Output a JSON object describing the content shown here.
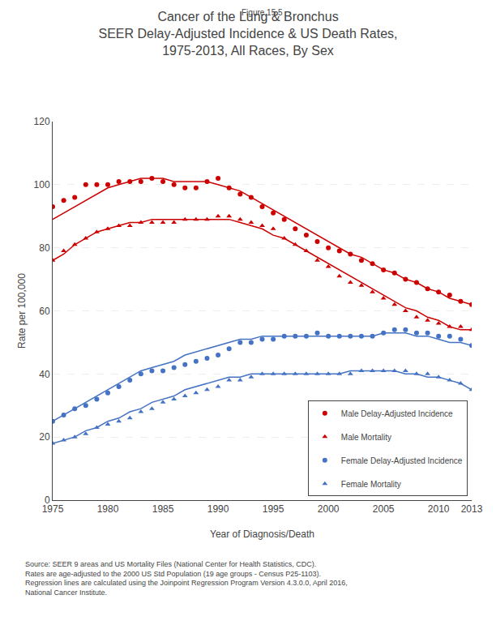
{
  "chart_data": {
    "type": "scatter",
    "title": "Cancer of the Lung & Bronchus\nSEER Delay-Adjusted Incidence & US Death Rates,\n1975-2013, All Races, By Sex",
    "annotations": [
      "Figure 15.5",
      "Source: SEER 9 areas and US Mortality Files (National Center for Health Statistics, CDC).\nRates are age-adjusted to the 2000 US Std Population (19 age groups - Census P25-1103).\nRegression lines are calculated using the Joinpoint Regression Program Version 4.3.0.0, April 2016,\nNational Cancer Institute."
    ],
    "xlabel": "Year of Diagnosis/Death",
    "ylabel": "Rate per 100,000",
    "x": [
      1975,
      1976,
      1977,
      1978,
      1979,
      1980,
      1981,
      1982,
      1983,
      1984,
      1985,
      1986,
      1987,
      1988,
      1989,
      1990,
      1991,
      1992,
      1993,
      1994,
      1995,
      1996,
      1997,
      1998,
      1999,
      2000,
      2001,
      2002,
      2003,
      2004,
      2005,
      2006,
      2007,
      2008,
      2009,
      2010,
      2011,
      2012,
      2013
    ],
    "series": [
      {
        "name": "Male Delay-Adjusted Incidence",
        "color": "#CC0000",
        "marker": "circle",
        "line_style": "solid",
        "values": [
          93,
          95,
          96,
          100,
          100,
          100,
          101,
          101,
          101,
          102,
          101,
          100,
          99,
          99,
          101,
          102,
          99,
          97,
          96,
          93,
          91,
          89,
          86,
          84,
          82,
          80,
          79,
          78,
          76,
          75,
          73,
          72,
          70,
          69,
          67,
          66,
          65,
          63,
          62
        ],
        "regression": [
          89,
          91,
          93,
          95,
          97,
          99,
          100,
          101,
          102,
          102,
          102,
          101,
          101,
          101,
          101,
          100,
          99,
          98,
          96,
          94,
          92,
          90,
          88,
          86,
          84,
          82,
          80,
          78,
          77,
          75,
          73,
          72,
          70,
          69,
          67,
          66,
          64,
          63,
          62
        ]
      },
      {
        "name": "Male Mortality",
        "color": "#CC0000",
        "marker": "triangle",
        "line_style": "solid",
        "values": [
          76,
          79,
          81,
          83,
          85,
          86,
          87,
          87,
          88,
          88,
          88,
          88,
          89,
          89,
          89,
          90,
          90,
          89,
          88,
          87,
          86,
          83,
          81,
          79,
          76,
          74,
          71,
          69,
          68,
          66,
          64,
          62,
          60,
          58,
          57,
          56,
          55,
          55,
          54
        ],
        "regression": [
          76,
          78,
          81,
          83,
          85,
          86,
          87,
          88,
          88,
          89,
          89,
          89,
          89,
          89,
          89,
          89,
          89,
          88,
          87,
          86,
          84,
          83,
          81,
          79,
          77,
          75,
          73,
          71,
          69,
          67,
          65,
          63,
          61,
          60,
          58,
          57,
          55,
          54,
          54
        ]
      },
      {
        "name": "Female Delay-Adjusted Incidence",
        "color": "#4472C4",
        "marker": "circle",
        "line_style": "solid",
        "values": [
          25,
          27,
          29,
          30,
          32,
          34,
          36,
          38,
          40,
          41,
          41,
          42,
          43,
          44,
          45,
          46,
          48,
          50,
          50,
          51,
          51,
          52,
          52,
          52,
          53,
          52,
          52,
          52,
          52,
          52,
          53,
          54,
          54,
          53,
          53,
          52,
          52,
          51,
          49
        ],
        "regression": [
          25,
          27,
          29,
          31,
          33,
          35,
          37,
          39,
          41,
          42,
          43,
          44,
          46,
          47,
          48,
          49,
          50,
          51,
          51,
          52,
          52,
          52,
          52,
          52,
          52,
          52,
          52,
          52,
          52,
          52,
          53,
          53,
          53,
          52,
          52,
          51,
          50,
          50,
          49
        ]
      },
      {
        "name": "Female Mortality",
        "color": "#4472C4",
        "marker": "triangle",
        "line_style": "solid",
        "values": [
          18,
          19,
          20,
          21,
          23,
          24,
          25,
          26,
          28,
          29,
          31,
          32,
          33,
          34,
          35,
          36,
          38,
          38,
          39,
          40,
          40,
          40,
          40,
          40,
          40,
          40,
          40,
          40,
          41,
          41,
          41,
          41,
          41,
          40,
          40,
          39,
          38,
          37,
          35
        ],
        "regression": [
          18,
          19,
          20,
          22,
          23,
          25,
          26,
          28,
          29,
          31,
          32,
          33,
          35,
          36,
          37,
          38,
          39,
          39,
          40,
          40,
          40,
          40,
          40,
          40,
          40,
          40,
          40,
          41,
          41,
          41,
          41,
          41,
          40,
          40,
          39,
          39,
          38,
          37,
          35
        ]
      }
    ],
    "xlim": [
      1975,
      2013
    ],
    "xticks": [
      1975,
      1980,
      1985,
      1990,
      1995,
      2000,
      2005,
      2010,
      2013
    ],
    "ylim": [
      0,
      120
    ],
    "yticks": [
      0,
      20,
      40,
      60,
      80,
      100,
      120
    ],
    "grid": true,
    "legend": "lower right"
  }
}
